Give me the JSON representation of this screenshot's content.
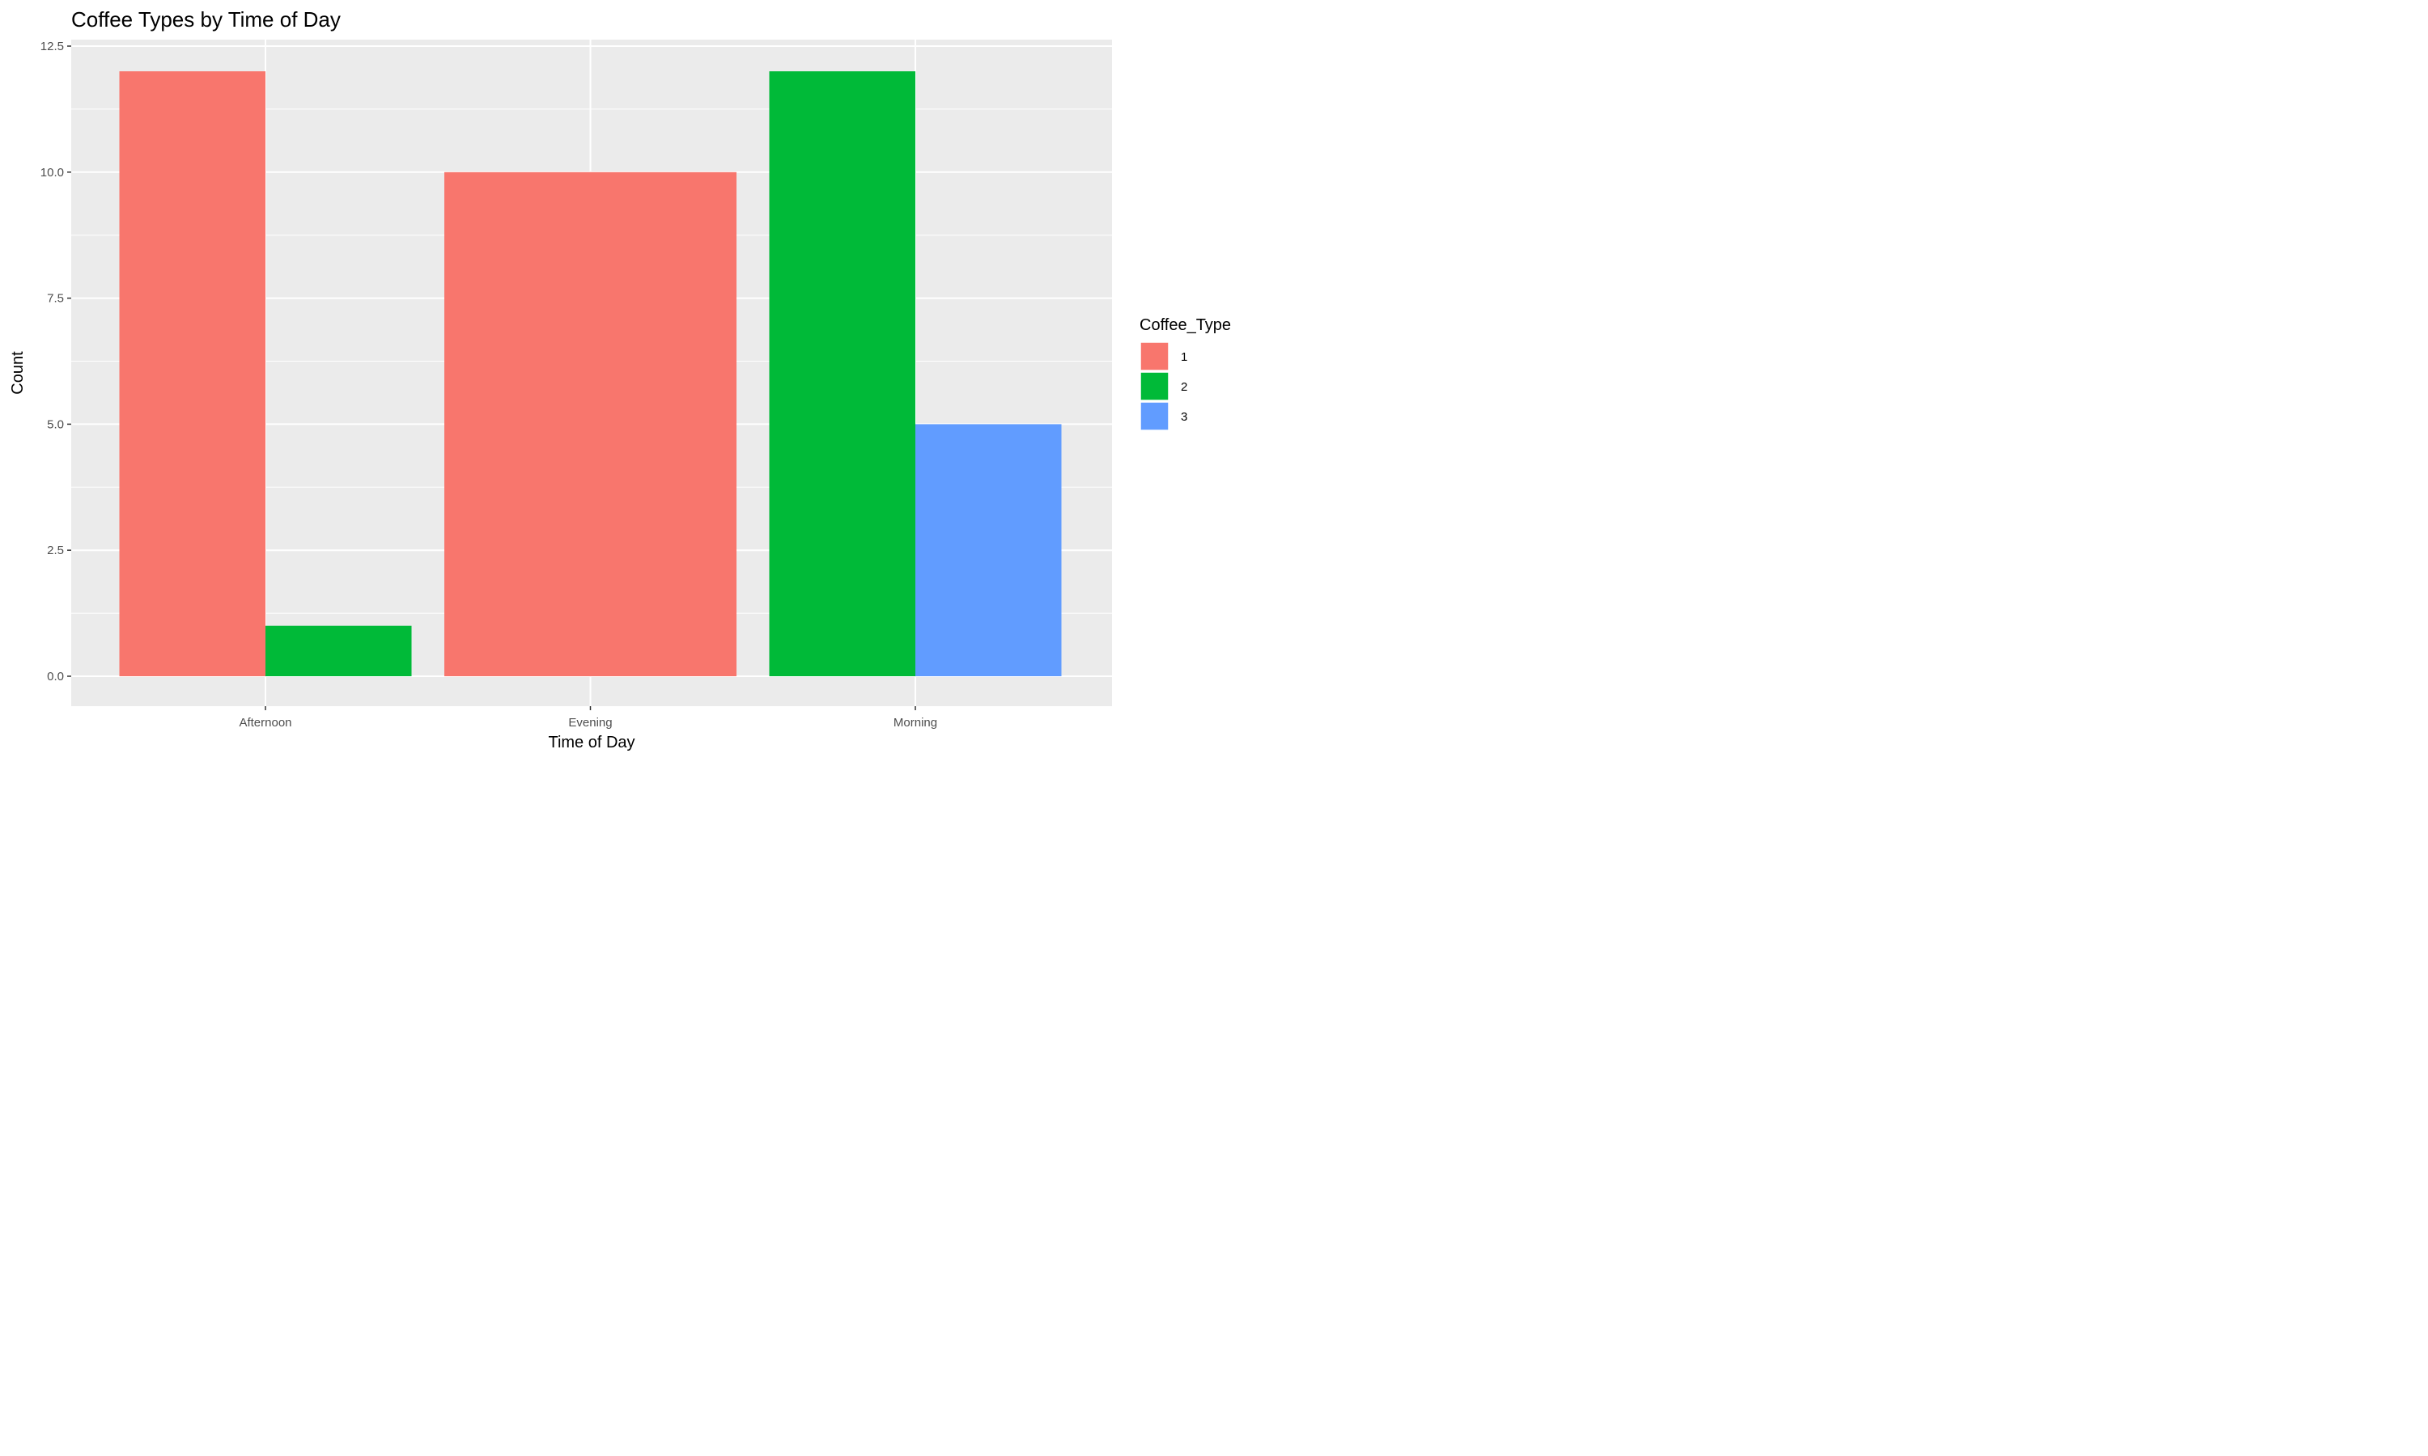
{
  "chart_data": {
    "type": "bar",
    "title": "Coffee Types by Time of Day",
    "xlabel": "Time of Day",
    "ylabel": "Count",
    "categories": [
      "Afternoon",
      "Evening",
      "Morning"
    ],
    "ylim": [
      -0.6,
      12.5
    ],
    "yticks": [
      0.0,
      2.5,
      5.0,
      7.5,
      10.0,
      12.5
    ],
    "ytick_labels": [
      "0.0",
      "2.5",
      "5.0",
      "7.5",
      "10.0",
      "12.5"
    ],
    "grid": true,
    "legend": {
      "title": "Coffee_Type",
      "position": "right"
    },
    "series": [
      {
        "name": "1",
        "color": "#F8766D",
        "values": [
          12,
          10,
          0
        ]
      },
      {
        "name": "2",
        "color": "#00BA38",
        "values": [
          1,
          0,
          12
        ]
      },
      {
        "name": "3",
        "color": "#619CFF",
        "values": [
          0,
          0,
          5
        ]
      }
    ],
    "bars": [
      {
        "category": "Afternoon",
        "series": "1",
        "value": 12,
        "dodge_index": 0,
        "dodge_count": 2
      },
      {
        "category": "Afternoon",
        "series": "2",
        "value": 1,
        "dodge_index": 1,
        "dodge_count": 2
      },
      {
        "category": "Evening",
        "series": "1",
        "value": 10,
        "dodge_index": 0,
        "dodge_count": 1
      },
      {
        "category": "Morning",
        "series": "2",
        "value": 12,
        "dodge_index": 0,
        "dodge_count": 2
      },
      {
        "category": "Morning",
        "series": "3",
        "value": 5,
        "dodge_index": 1,
        "dodge_count": 2
      }
    ]
  }
}
